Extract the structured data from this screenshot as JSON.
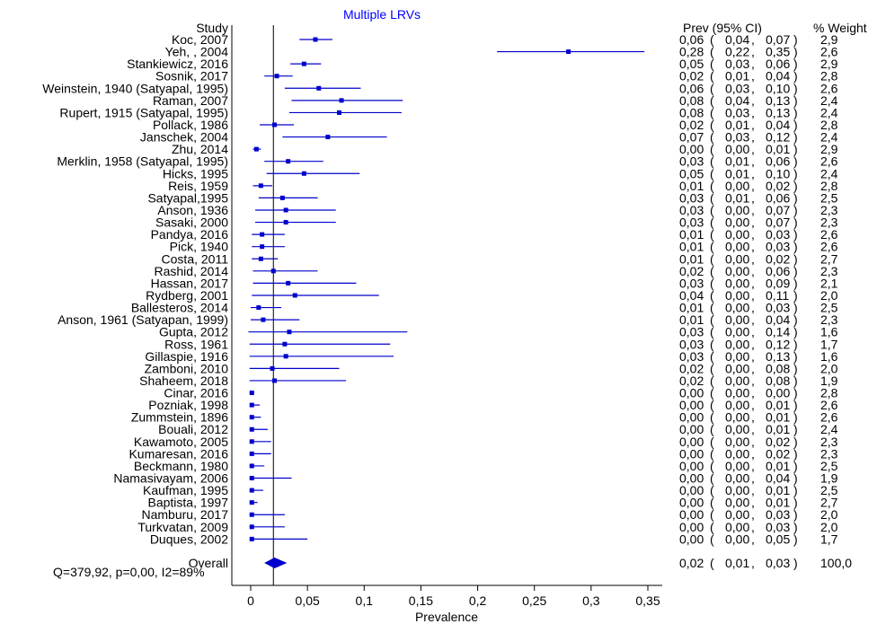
{
  "chart_data": {
    "type": "forest",
    "title": "Multiple LRVs",
    "xlabel": "Prevalence",
    "xlim": [
      -0.02,
      0.36
    ],
    "x_ticks": [
      0,
      0.05,
      0.1,
      0.15,
      0.2,
      0.25,
      0.3,
      0.35
    ],
    "x_tick_labels": [
      "0",
      "0,05",
      "0,1",
      "0,15",
      "0,2",
      "0,25",
      "0,3",
      "0,35"
    ],
    "reference_line": 0.02,
    "headers": {
      "study": "Study",
      "ci": "Prev (95% CI)",
      "weight": "% Weight"
    },
    "studies": [
      {
        "label": "Koc, 2007",
        "prev": 0.057,
        "lo": 0.043,
        "hi": 0.072,
        "prev_txt": "0,06",
        "lo_txt": "0,04",
        "hi_txt": "0,07",
        "weight": "2,9"
      },
      {
        "label": "Yeh, , 2004",
        "prev": 0.28,
        "lo": 0.217,
        "hi": 0.347,
        "prev_txt": "0,28",
        "lo_txt": "0,22",
        "hi_txt": "0,35",
        "weight": "2,6"
      },
      {
        "label": "Stankiewicz, 2016",
        "prev": 0.047,
        "lo": 0.035,
        "hi": 0.062,
        "prev_txt": "0,05",
        "lo_txt": "0,03",
        "hi_txt": "0,06",
        "weight": "2,9"
      },
      {
        "label": "Sosnik, 2017",
        "prev": 0.023,
        "lo": 0.012,
        "hi": 0.037,
        "prev_txt": "0,02",
        "lo_txt": "0,01",
        "hi_txt": "0,04",
        "weight": "2,8"
      },
      {
        "label": "Weinstein, 1940 (Satyapal, 1995)",
        "prev": 0.06,
        "lo": 0.03,
        "hi": 0.097,
        "prev_txt": "0,06",
        "lo_txt": "0,03",
        "hi_txt": "0,10",
        "weight": "2,6"
      },
      {
        "label": "Raman, 2007",
        "prev": 0.08,
        "lo": 0.036,
        "hi": 0.134,
        "prev_txt": "0,08",
        "lo_txt": "0,04",
        "hi_txt": "0,13",
        "weight": "2,4"
      },
      {
        "label": "Rupert, 1915 (Satyapal, 1995)",
        "prev": 0.078,
        "lo": 0.034,
        "hi": 0.133,
        "prev_txt": "0,08",
        "lo_txt": "0,03",
        "hi_txt": "0,13",
        "weight": "2,4"
      },
      {
        "label": "Pollack, 1986",
        "prev": 0.021,
        "lo": 0.008,
        "hi": 0.038,
        "prev_txt": "0,02",
        "lo_txt": "0,01",
        "hi_txt": "0,04",
        "weight": "2,8"
      },
      {
        "label": "Janschek, 2004",
        "prev": 0.068,
        "lo": 0.028,
        "hi": 0.12,
        "prev_txt": "0,07",
        "lo_txt": "0,03",
        "hi_txt": "0,12",
        "weight": "2,4"
      },
      {
        "label": "Zhu, 2014",
        "prev": 0.005,
        "lo": 0.002,
        "hi": 0.009,
        "prev_txt": "0,00",
        "lo_txt": "0,00",
        "hi_txt": "0,01",
        "weight": "2,9"
      },
      {
        "label": "Merklin, 1958 (Satyapal, 1995)",
        "prev": 0.033,
        "lo": 0.012,
        "hi": 0.064,
        "prev_txt": "0,03",
        "lo_txt": "0,01",
        "hi_txt": "0,06",
        "weight": "2,6"
      },
      {
        "label": "Hicks, 1995",
        "prev": 0.047,
        "lo": 0.014,
        "hi": 0.096,
        "prev_txt": "0,05",
        "lo_txt": "0,01",
        "hi_txt": "0,10",
        "weight": "2,4"
      },
      {
        "label": "Reis, 1959",
        "prev": 0.009,
        "lo": 0.002,
        "hi": 0.019,
        "prev_txt": "0,01",
        "lo_txt": "0,00",
        "hi_txt": "0,02",
        "weight": "2,8"
      },
      {
        "label": "Satyapal,1995",
        "prev": 0.028,
        "lo": 0.007,
        "hi": 0.059,
        "prev_txt": "0,03",
        "lo_txt": "0,01",
        "hi_txt": "0,06",
        "weight": "2,5"
      },
      {
        "label": "Anson, 1936",
        "prev": 0.031,
        "lo": 0.004,
        "hi": 0.075,
        "prev_txt": "0,03",
        "lo_txt": "0,00",
        "hi_txt": "0,07",
        "weight": "2,3"
      },
      {
        "label": "Sasaki, 2000",
        "prev": 0.031,
        "lo": 0.004,
        "hi": 0.075,
        "prev_txt": "0,03",
        "lo_txt": "0,00",
        "hi_txt": "0,07",
        "weight": "2,3"
      },
      {
        "label": "Pandya, 2016",
        "prev": 0.01,
        "lo": 0.001,
        "hi": 0.03,
        "prev_txt": "0,01",
        "lo_txt": "0,00",
        "hi_txt": "0,03",
        "weight": "2,6"
      },
      {
        "label": "Pick, 1940",
        "prev": 0.01,
        "lo": 0.001,
        "hi": 0.03,
        "prev_txt": "0,01",
        "lo_txt": "0,00",
        "hi_txt": "0,03",
        "weight": "2,6"
      },
      {
        "label": "Costa, 2011",
        "prev": 0.009,
        "lo": 0.001,
        "hi": 0.024,
        "prev_txt": "0,01",
        "lo_txt": "0,00",
        "hi_txt": "0,02",
        "weight": "2,7"
      },
      {
        "label": "Rashid, 2014",
        "prev": 0.02,
        "lo": 0.002,
        "hi": 0.059,
        "prev_txt": "0,02",
        "lo_txt": "0,00",
        "hi_txt": "0,06",
        "weight": "2,3"
      },
      {
        "label": "Hassan, 2017",
        "prev": 0.033,
        "lo": 0.002,
        "hi": 0.093,
        "prev_txt": "0,03",
        "lo_txt": "0,00",
        "hi_txt": "0,09",
        "weight": "2,1"
      },
      {
        "label": "Rydberg, 2001",
        "prev": 0.039,
        "lo": 0.001,
        "hi": 0.113,
        "prev_txt": "0,04",
        "lo_txt": "0,00",
        "hi_txt": "0,11",
        "weight": "2,0"
      },
      {
        "label": "Ballesteros, 2014",
        "prev": 0.007,
        "lo": 0.0,
        "hi": 0.027,
        "prev_txt": "0,01",
        "lo_txt": "0,00",
        "hi_txt": "0,03",
        "weight": "2,5"
      },
      {
        "label": "Anson, 1961 (Satyapan, 1999)",
        "prev": 0.011,
        "lo": 0.0,
        "hi": 0.043,
        "prev_txt": "0,01",
        "lo_txt": "0,00",
        "hi_txt": "0,04",
        "weight": "2,3"
      },
      {
        "label": "Gupta, 2012",
        "prev": 0.034,
        "lo": -0.002,
        "hi": 0.138,
        "prev_txt": "0,03",
        "lo_txt": "0,00",
        "hi_txt": "0,14",
        "weight": "1,6"
      },
      {
        "label": "Ross, 1961",
        "prev": 0.03,
        "lo": -0.001,
        "hi": 0.123,
        "prev_txt": "0,03",
        "lo_txt": "0,00",
        "hi_txt": "0,12",
        "weight": "1,7"
      },
      {
        "label": "Gillaspie, 1916",
        "prev": 0.031,
        "lo": -0.001,
        "hi": 0.126,
        "prev_txt": "0,03",
        "lo_txt": "0,00",
        "hi_txt": "0,13",
        "weight": "1,6"
      },
      {
        "label": "Zamboni, 2010",
        "prev": 0.019,
        "lo": -0.001,
        "hi": 0.078,
        "prev_txt": "0,02",
        "lo_txt": "0,00",
        "hi_txt": "0,08",
        "weight": "2,0"
      },
      {
        "label": "Shaheem, 2018",
        "prev": 0.021,
        "lo": -0.001,
        "hi": 0.084,
        "prev_txt": "0,02",
        "lo_txt": "0,00",
        "hi_txt": "0,08",
        "weight": "1,9"
      },
      {
        "label": "Cinar, 2016",
        "prev": 0.001,
        "lo": -0.001,
        "hi": 0.003,
        "prev_txt": "0,00",
        "lo_txt": "0,00",
        "hi_txt": "0,00",
        "weight": "2,8"
      },
      {
        "label": "Pozniak, 1998",
        "prev": 0.001,
        "lo": -0.001,
        "hi": 0.008,
        "prev_txt": "0,00",
        "lo_txt": "0,00",
        "hi_txt": "0,01",
        "weight": "2,6"
      },
      {
        "label": "Zummstein, 1896",
        "prev": 0.001,
        "lo": -0.001,
        "hi": 0.009,
        "prev_txt": "0,00",
        "lo_txt": "0,00",
        "hi_txt": "0,01",
        "weight": "2,6"
      },
      {
        "label": "Bouali, 2012",
        "prev": 0.001,
        "lo": -0.001,
        "hi": 0.015,
        "prev_txt": "0,00",
        "lo_txt": "0,00",
        "hi_txt": "0,01",
        "weight": "2,4"
      },
      {
        "label": "Kawamoto, 2005",
        "prev": 0.001,
        "lo": -0.001,
        "hi": 0.018,
        "prev_txt": "0,00",
        "lo_txt": "0,00",
        "hi_txt": "0,02",
        "weight": "2,3"
      },
      {
        "label": "Kumaresan, 2016",
        "prev": 0.001,
        "lo": -0.001,
        "hi": 0.018,
        "prev_txt": "0,00",
        "lo_txt": "0,00",
        "hi_txt": "0,02",
        "weight": "2,3"
      },
      {
        "label": "Beckmann, 1980",
        "prev": 0.001,
        "lo": -0.001,
        "hi": 0.012,
        "prev_txt": "0,00",
        "lo_txt": "0,00",
        "hi_txt": "0,01",
        "weight": "2,5"
      },
      {
        "label": "Namasivayam, 2006",
        "prev": 0.001,
        "lo": -0.001,
        "hi": 0.036,
        "prev_txt": "0,00",
        "lo_txt": "0,00",
        "hi_txt": "0,04",
        "weight": "1,9"
      },
      {
        "label": "Kaufman, 1995",
        "prev": 0.001,
        "lo": -0.001,
        "hi": 0.011,
        "prev_txt": "0,00",
        "lo_txt": "0,00",
        "hi_txt": "0,01",
        "weight": "2,5"
      },
      {
        "label": "Baptista, 1997",
        "prev": 0.001,
        "lo": -0.001,
        "hi": 0.006,
        "prev_txt": "0,00",
        "lo_txt": "0,00",
        "hi_txt": "0,01",
        "weight": "2,7"
      },
      {
        "label": "Namburu, 2017",
        "prev": 0.001,
        "lo": -0.001,
        "hi": 0.03,
        "prev_txt": "0,00",
        "lo_txt": "0,00",
        "hi_txt": "0,03",
        "weight": "2,0"
      },
      {
        "label": "Turkvatan, 2009",
        "prev": 0.001,
        "lo": -0.001,
        "hi": 0.03,
        "prev_txt": "0,00",
        "lo_txt": "0,00",
        "hi_txt": "0,03",
        "weight": "2,0"
      },
      {
        "label": "Duques, 2002",
        "prev": 0.001,
        "lo": -0.001,
        "hi": 0.05,
        "prev_txt": "0,00",
        "lo_txt": "0,00",
        "hi_txt": "0,05",
        "weight": "1,7"
      }
    ],
    "overall": {
      "label": "Overall",
      "prev": 0.021,
      "lo": 0.012,
      "hi": 0.032,
      "prev_txt": "0,02",
      "lo_txt": "0,01",
      "hi_txt": "0,03",
      "weight": "100,0"
    },
    "heterogeneity": "Q=379,92, p=0,00, I2=89%",
    "colors": {
      "marker": "#0000cc",
      "title": "#0000ff",
      "axis": "#000000",
      "text": "#000000"
    }
  }
}
